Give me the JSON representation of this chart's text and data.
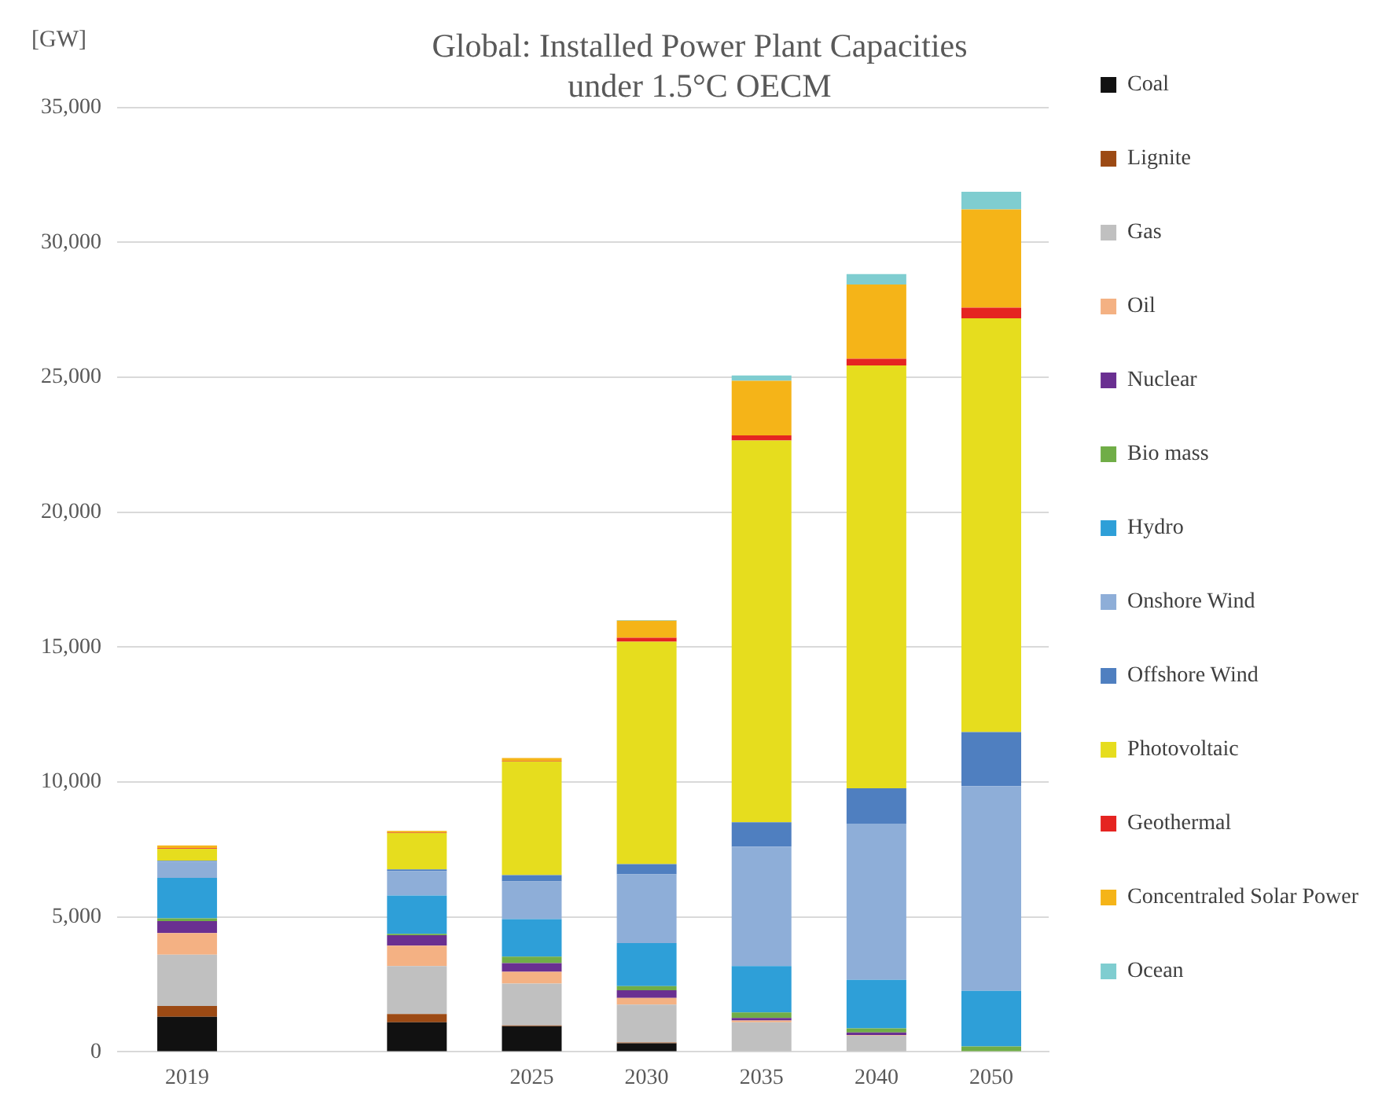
{
  "chart_data": {
    "type": "bar",
    "title": [
      "Global: Installed Power Plant Capacities",
      "under 1.5°C OECM"
    ],
    "ylabel": "[GW]",
    "categories": [
      "2019",
      null,
      null,
      "2025",
      "2030",
      "2035",
      "2040",
      "2050"
    ],
    "stacked": true,
    "series": [
      {
        "name": "Coal",
        "color": "#111111",
        "values": [
          1300,
          null,
          1100,
          950,
          320,
          null,
          0,
          0
        ]
      },
      {
        "name": "Lignite",
        "color": "#9c4a14",
        "values": [
          400,
          null,
          300,
          30,
          30,
          0,
          0,
          0
        ]
      },
      {
        "name": "Gas",
        "color": "#c0c0c0",
        "values": [
          1900,
          null,
          1780,
          1550,
          1400,
          1100,
          600,
          0
        ]
      },
      {
        "name": "Oil",
        "color": "#f4b183",
        "values": [
          800,
          null,
          760,
          440,
          250,
          60,
          20,
          0
        ]
      },
      {
        "name": "Nuclear",
        "color": "#6a2f91",
        "values": [
          450,
          null,
          380,
          320,
          280,
          100,
          100,
          null
        ]
      },
      {
        "name": "Bio mass",
        "color": "#70ad47",
        "values": [
          100,
          null,
          50,
          240,
          160,
          200,
          150,
          200
        ]
      },
      {
        "name": "Hydro",
        "color": "#2e9fd8",
        "values": [
          1500,
          null,
          1420,
          1390,
          1590,
          1720,
          1800,
          2060
        ]
      },
      {
        "name": "Onshore Wind",
        "color": "#8eaed8",
        "values": [
          600,
          null,
          910,
          1400,
          2550,
          4430,
          5790,
          7590
        ]
      },
      {
        "name": "Offshore Wind",
        "color": "#4f7fc0",
        "values": [
          30,
          null,
          60,
          230,
          380,
          900,
          1310,
          2000
        ]
      },
      {
        "name": "Photovoltaic",
        "color": "#e6dd1e",
        "values": [
          450,
          null,
          1360,
          4220,
          8240,
          14150,
          15670,
          15340
        ]
      },
      {
        "name": "Geothermal",
        "color": "#e52421",
        "values": [
          20,
          null,
          20,
          20,
          150,
          190,
          250,
          390
        ]
      },
      {
        "name": "Concentraled Solar Power",
        "color": "#f5b418",
        "values": [
          100,
          null,
          50,
          100,
          630,
          2020,
          2750,
          3640
        ]
      },
      {
        "name": "Ocean",
        "color": "#7fcdd0",
        "values": [
          0,
          null,
          0,
          0,
          20,
          200,
          390,
          660
        ]
      }
    ],
    "ylim": [
      0,
      35000
    ],
    "yticks": [
      {
        "value": 0,
        "label": "0"
      },
      {
        "value": 5000,
        "label": "5,000"
      },
      {
        "value": 10000,
        "label": "10,000"
      },
      {
        "value": 15000,
        "label": "15,000"
      },
      {
        "value": 20000,
        "label": "20,000"
      },
      {
        "value": 25000,
        "label": "25,000"
      },
      {
        "value": 30000,
        "label": "30,000"
      },
      {
        "value": 35000,
        "label": "35,000"
      }
    ],
    "grid": "y",
    "legend": "right"
  }
}
